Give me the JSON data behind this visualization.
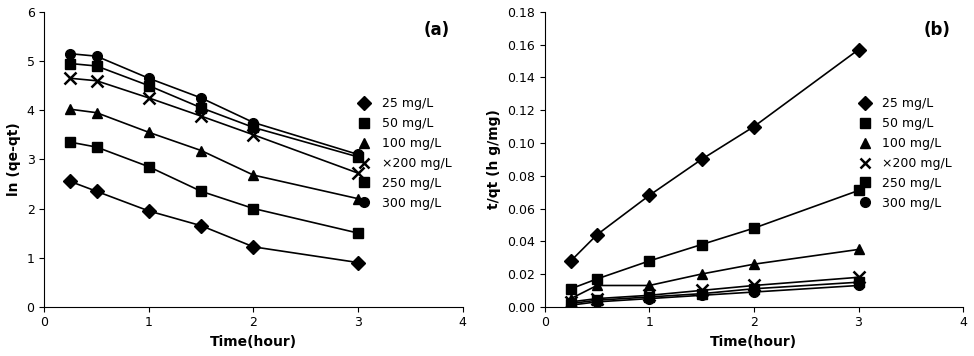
{
  "panel_a": {
    "title": "(a)",
    "xlabel": "Time(hour)",
    "ylabel": "ln (qe-qt)",
    "xlim": [
      0,
      4
    ],
    "ylim": [
      0,
      6
    ],
    "xticks": [
      0,
      1,
      2,
      3,
      4
    ],
    "yticks": [
      0,
      1,
      2,
      3,
      4,
      5,
      6
    ],
    "series": [
      {
        "label": "25 mg/L",
        "marker": "D",
        "x": [
          0.25,
          0.5,
          1.0,
          1.5,
          2.0,
          3.0
        ],
        "y": [
          2.55,
          2.35,
          1.95,
          1.65,
          1.22,
          0.9
        ]
      },
      {
        "label": "50 mg/L",
        "marker": "s",
        "x": [
          0.25,
          0.5,
          1.0,
          1.5,
          2.0,
          3.0
        ],
        "y": [
          3.35,
          3.25,
          2.85,
          2.35,
          2.0,
          1.5
        ]
      },
      {
        "label": "100 mg/L",
        "marker": "^",
        "x": [
          0.25,
          0.5,
          1.0,
          1.5,
          2.0,
          3.0
        ],
        "y": [
          4.02,
          3.95,
          3.55,
          3.18,
          2.68,
          2.2
        ]
      },
      {
        "label": "×200 mg/L",
        "marker": "x",
        "x": [
          0.25,
          0.5,
          1.0,
          1.5,
          2.0,
          3.0
        ],
        "y": [
          4.65,
          4.6,
          4.25,
          3.88,
          3.5,
          2.72
        ]
      },
      {
        "label": "250 mg/L",
        "marker": "s",
        "x": [
          0.25,
          0.5,
          1.0,
          1.5,
          2.0,
          3.0
        ],
        "y": [
          4.95,
          4.9,
          4.5,
          4.05,
          3.65,
          3.05
        ]
      },
      {
        "label": "300 mg/L",
        "marker": "o",
        "x": [
          0.25,
          0.5,
          1.0,
          1.5,
          2.0,
          3.0
        ],
        "y": [
          5.15,
          5.1,
          4.65,
          4.25,
          3.75,
          3.1
        ]
      }
    ]
  },
  "panel_b": {
    "title": "(b)",
    "xlabel": "Time(hour)",
    "ylabel": "t/qt (h g/mg)",
    "xlim": [
      0,
      4
    ],
    "ylim": [
      0,
      0.18
    ],
    "xticks": [
      0,
      1,
      2,
      3,
      4
    ],
    "yticks": [
      0,
      0.02,
      0.04,
      0.06,
      0.08,
      0.1,
      0.12,
      0.14,
      0.16,
      0.18
    ],
    "series": [
      {
        "label": "25 mg/L",
        "marker": "D",
        "x": [
          0.25,
          0.5,
          1.0,
          1.5,
          2.0,
          3.0
        ],
        "y": [
          0.028,
          0.044,
          0.068,
          0.09,
          0.11,
          0.157
        ]
      },
      {
        "label": "50 mg/L",
        "marker": "s",
        "x": [
          0.25,
          0.5,
          1.0,
          1.5,
          2.0,
          3.0
        ],
        "y": [
          0.011,
          0.017,
          0.028,
          0.038,
          0.048,
          0.071
        ]
      },
      {
        "label": "100 mg/L",
        "marker": "^",
        "x": [
          0.25,
          0.5,
          1.0,
          1.5,
          2.0,
          3.0
        ],
        "y": [
          0.005,
          0.013,
          0.013,
          0.02,
          0.026,
          0.035
        ]
      },
      {
        "label": "×200 mg/L",
        "marker": "x",
        "x": [
          0.25,
          0.5,
          1.0,
          1.5,
          2.0,
          3.0
        ],
        "y": [
          0.003,
          0.005,
          0.007,
          0.01,
          0.013,
          0.018
        ]
      },
      {
        "label": "250 mg/L",
        "marker": "s",
        "x": [
          0.25,
          0.5,
          1.0,
          1.5,
          2.0,
          3.0
        ],
        "y": [
          0.002,
          0.004,
          0.006,
          0.008,
          0.011,
          0.015
        ]
      },
      {
        "label": "300 mg/L",
        "marker": "o",
        "x": [
          0.25,
          0.5,
          1.0,
          1.5,
          2.0,
          3.0
        ],
        "y": [
          0.001,
          0.003,
          0.005,
          0.007,
          0.009,
          0.013
        ]
      }
    ]
  },
  "line_color": "#000000",
  "marker_color": "#000000",
  "marker_size": 7,
  "linewidth": 1.2,
  "font_size": 9,
  "label_font_size": 10,
  "title_font_size": 12
}
